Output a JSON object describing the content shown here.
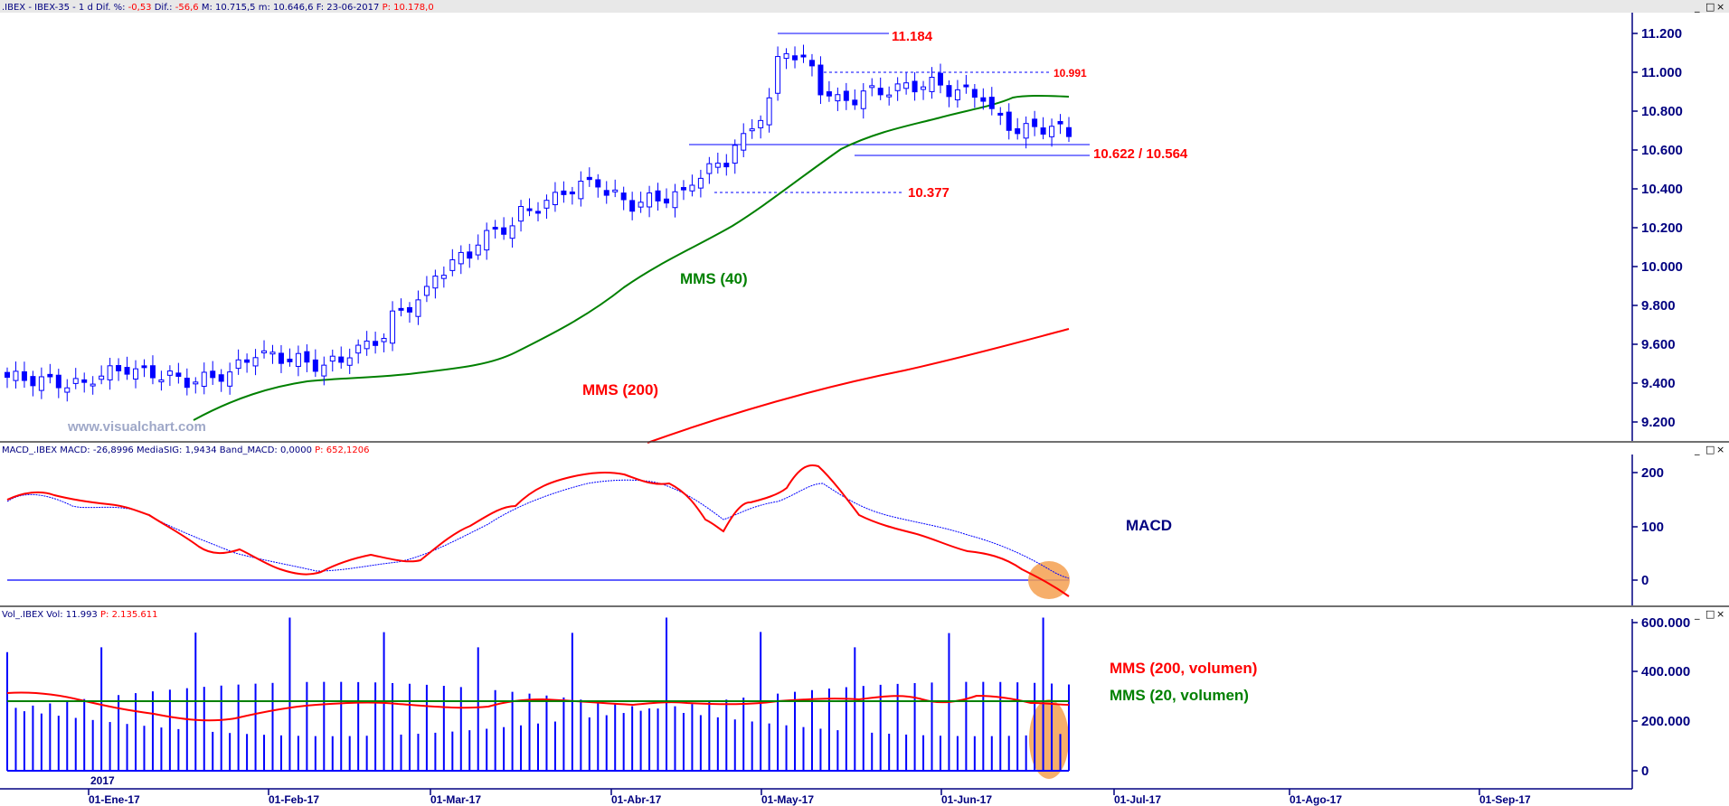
{
  "colors": {
    "navy": "#000080",
    "candle": "#0000ff",
    "macd_line": "#ff0000",
    "macd_signal": "#0000ff",
    "mms40": "#008000",
    "mms200": "#ff0000",
    "highlight": "#f5a050",
    "volume_bar": "#0000ff"
  },
  "price_panel": {
    "header": {
      "prefix": ".IBEX - IBEX-35 - 1 d",
      "dif_pct_label": "Dif. %:",
      "dif_pct_value": "-0,53",
      "dif_label": "Dif.:",
      "dif_value": "-56,6",
      "max_label": "M: 10.715,5",
      "min_label": "m: 10.646,6",
      "date_label": "F: 23-06-2017",
      "p_label": "P:",
      "p_value": "10.178,0"
    },
    "watermark": "www.visualchart.com",
    "level_labels": {
      "top": "11.184",
      "resistance": "10.991",
      "support": "10.622 / 10.564",
      "gap": "10.377"
    },
    "ma_labels": {
      "mms40": "MMS (40)",
      "mms200": "MMS (200)"
    },
    "yaxis": [
      "11.200",
      "11.000",
      "10.800",
      "10.600",
      "10.400",
      "10.200",
      "10.000",
      "9.800",
      "9.600",
      "9.400",
      "9.200"
    ]
  },
  "macd_panel": {
    "header": {
      "text": "MACD_.IBEX  MACD: -26,8996  MediaSIG: 1,9434  Band_MACD: 0,0000",
      "p_value": "P: 652,1206"
    },
    "title": "MACD",
    "yaxis": [
      "200",
      "100",
      "0"
    ]
  },
  "volume_panel": {
    "header": {
      "text": "Vol_.IBEX  Vol: 11.993",
      "p_value": "P: 2.135.611"
    },
    "ma200_label": "MMS (200, volumen)",
    "ma20_label": "MMS (20, volumen)",
    "yaxis": [
      "600.000",
      "400.000",
      "200.000",
      "0"
    ]
  },
  "xaxis": {
    "year_label": "2017",
    "labels": [
      "01-Ene-17",
      "01-Feb-17",
      "01-Mar-17",
      "01-Abr-17",
      "01-May-17",
      "01-Jun-17",
      "01-Jul-17",
      "01-Ago-17",
      "01-Sep-17"
    ]
  },
  "window_buttons": [
    "_",
    "□",
    "×"
  ],
  "chart_data": [
    {
      "type": "candlestick",
      "title": "IBEX-35 - 1 d",
      "x_range": [
        "2017-01-02",
        "2017-06-23"
      ],
      "ylim": [
        9100,
        11300
      ],
      "reference_levels": [
        11184,
        10991,
        10622,
        10564,
        10377
      ],
      "close_series_approx": [
        {
          "x": "2017-01-02",
          "y": 9430
        },
        {
          "x": "2017-01-13",
          "y": 9390
        },
        {
          "x": "2017-01-20",
          "y": 9480
        },
        {
          "x": "2017-01-31",
          "y": 9410
        },
        {
          "x": "2017-02-07",
          "y": 9450
        },
        {
          "x": "2017-02-10",
          "y": 9560
        },
        {
          "x": "2017-02-22",
          "y": 9490
        },
        {
          "x": "2017-03-01",
          "y": 9590
        },
        {
          "x": "2017-03-08",
          "y": 9800
        },
        {
          "x": "2017-03-15",
          "y": 10020
        },
        {
          "x": "2017-03-22",
          "y": 10180
        },
        {
          "x": "2017-03-31",
          "y": 10350
        },
        {
          "x": "2017-04-07",
          "y": 10440
        },
        {
          "x": "2017-04-13",
          "y": 10320
        },
        {
          "x": "2017-04-21",
          "y": 10370
        },
        {
          "x": "2017-05-02",
          "y": 10650
        },
        {
          "x": "2017-05-09",
          "y": 11120
        },
        {
          "x": "2017-05-17",
          "y": 10850
        },
        {
          "x": "2017-05-23",
          "y": 10900
        },
        {
          "x": "2017-06-01",
          "y": 10940
        },
        {
          "x": "2017-06-09",
          "y": 10880
        },
        {
          "x": "2017-06-15",
          "y": 10700
        },
        {
          "x": "2017-06-21",
          "y": 10720
        },
        {
          "x": "2017-06-23",
          "y": 10680
        }
      ],
      "series": [
        {
          "name": "MMS (40)",
          "values": [
            {
              "x": "2017-01-31",
              "y": 9170
            },
            {
              "x": "2017-02-15",
              "y": 9390
            },
            {
              "x": "2017-03-01",
              "y": 9430
            },
            {
              "x": "2017-03-15",
              "y": 9640
            },
            {
              "x": "2017-04-03",
              "y": 10030
            },
            {
              "x": "2017-04-20",
              "y": 10300
            },
            {
              "x": "2017-05-05",
              "y": 10480
            },
            {
              "x": "2017-05-22",
              "y": 10650
            },
            {
              "x": "2017-06-08",
              "y": 10800
            },
            {
              "x": "2017-06-23",
              "y": 10870
            }
          ]
        },
        {
          "name": "MMS (200)",
          "values": [
            {
              "x": "2017-03-25",
              "y": 9100
            },
            {
              "x": "2017-04-25",
              "y": 9250
            },
            {
              "x": "2017-05-25",
              "y": 9460
            },
            {
              "x": "2017-06-23",
              "y": 9680
            }
          ]
        }
      ]
    },
    {
      "type": "line",
      "title": "MACD",
      "ylim": [
        -40,
        230
      ],
      "series": [
        {
          "name": "MACD",
          "values": [
            {
              "x": "2017-01-02",
              "y": 150
            },
            {
              "x": "2017-01-10",
              "y": 170
            },
            {
              "x": "2017-01-26",
              "y": 140
            },
            {
              "x": "2017-02-10",
              "y": 60
            },
            {
              "x": "2017-02-27",
              "y": 10
            },
            {
              "x": "2017-03-10",
              "y": 40
            },
            {
              "x": "2017-03-20",
              "y": 40
            },
            {
              "x": "2017-03-31",
              "y": 110
            },
            {
              "x": "2017-04-12",
              "y": 185
            },
            {
              "x": "2017-04-24",
              "y": 195
            },
            {
              "x": "2017-05-04",
              "y": 120
            },
            {
              "x": "2017-05-10",
              "y": 100
            },
            {
              "x": "2017-05-19",
              "y": 215
            },
            {
              "x": "2017-05-30",
              "y": 100
            },
            {
              "x": "2017-06-09",
              "y": 50
            },
            {
              "x": "2017-06-18",
              "y": 20
            },
            {
              "x": "2017-06-23",
              "y": -27
            }
          ]
        },
        {
          "name": "MediaSIG",
          "values": [
            {
              "x": "2017-01-02",
              "y": 75
            },
            {
              "x": "2017-01-16",
              "y": 140
            },
            {
              "x": "2017-02-01",
              "y": 140
            },
            {
              "x": "2017-02-15",
              "y": 70
            },
            {
              "x": "2017-03-01",
              "y": 20
            },
            {
              "x": "2017-03-20",
              "y": 40
            },
            {
              "x": "2017-04-05",
              "y": 150
            },
            {
              "x": "2017-04-21",
              "y": 185
            },
            {
              "x": "2017-05-05",
              "y": 130
            },
            {
              "x": "2017-05-22",
              "y": 190
            },
            {
              "x": "2017-06-05",
              "y": 110
            },
            {
              "x": "2017-06-18",
              "y": 50
            },
            {
              "x": "2017-06-23",
              "y": 2
            }
          ]
        }
      ],
      "band": 0
    },
    {
      "type": "bar",
      "title": "Vol_.IBEX",
      "ylim": [
        0,
        650000
      ],
      "last_value": 11993,
      "typical_range": [
        100000,
        650000
      ],
      "series": [
        {
          "name": "MMS (200, volumen)",
          "approx_level": 280000
        },
        {
          "name": "MMS (20, volumen)",
          "approx_level": 270000
        }
      ]
    }
  ]
}
